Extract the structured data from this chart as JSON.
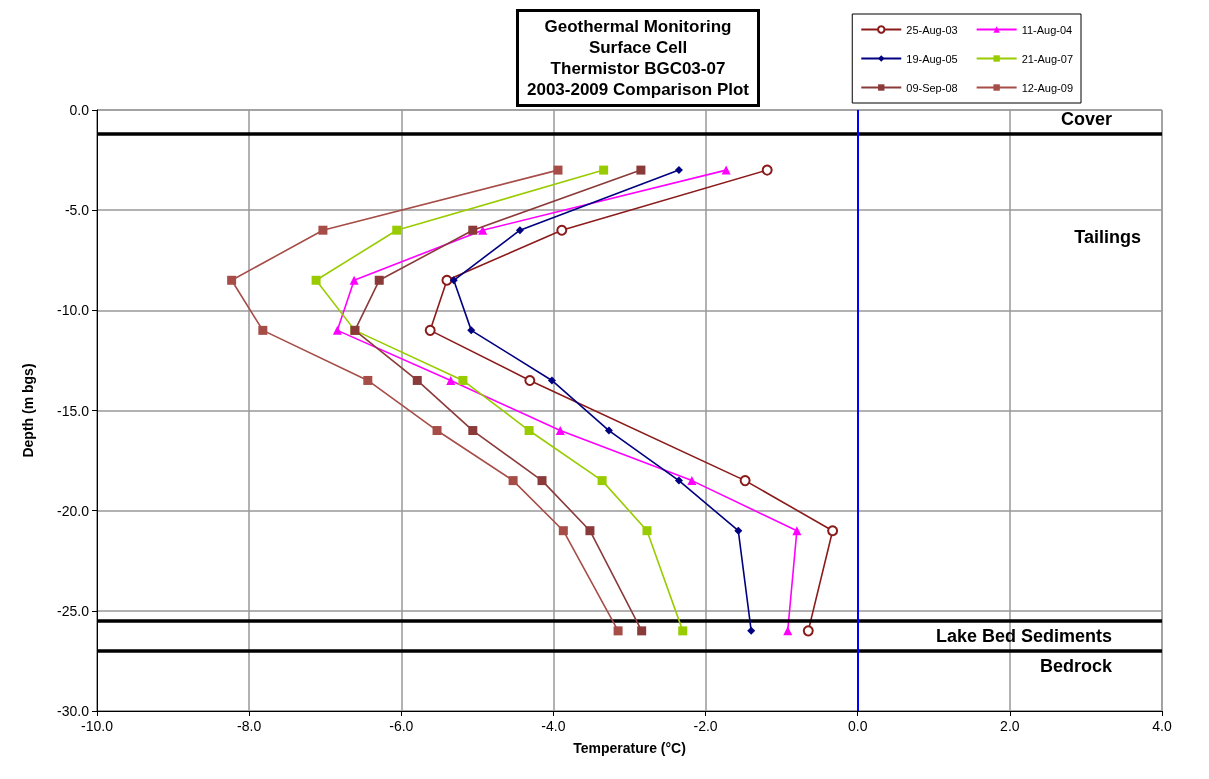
{
  "chart_data": {
    "type": "line",
    "title": "Geothermal Monitoring\nSurface Cell\nThermistor BGC03-07\n2003-2009 Comparison Plot",
    "xlabel": "Temperature (°C)",
    "ylabel": "Depth (m bgs)",
    "series": [
      {
        "name": "25-Aug-03",
        "color": "#8b1a1a",
        "marker": "circle",
        "x": [
          -1.19,
          -3.89,
          -5.4,
          -5.62,
          -4.31,
          -1.48,
          -0.33,
          -0.65
        ],
        "values": [
          -3,
          -6,
          -8.5,
          -11,
          -13.5,
          -18.5,
          -21,
          -26
        ]
      },
      {
        "name": "11-Aug-04",
        "color": "#ff00ff",
        "marker": "triangle",
        "x": [
          -1.73,
          -4.93,
          -6.62,
          -6.84,
          -5.35,
          -3.91,
          -2.18,
          -0.8,
          -0.92
        ],
        "values": [
          -3,
          -6,
          -8.5,
          -11,
          -13.5,
          -16,
          -18.5,
          -21,
          -26
        ]
      },
      {
        "name": "19-Aug-05",
        "color": "#000080",
        "marker": "diamond",
        "x": [
          -2.35,
          -4.44,
          -5.31,
          -5.08,
          -4.02,
          -3.27,
          -2.35,
          -1.57,
          -1.4
        ],
        "values": [
          -3,
          -6,
          -8.5,
          -11,
          -13.5,
          -16,
          -18.5,
          -21,
          -26
        ]
      },
      {
        "name": "21-Aug-07",
        "color": "#99cc00",
        "marker": "square",
        "x": [
          -3.34,
          -6.06,
          -7.12,
          -6.61,
          -5.19,
          -4.32,
          -3.36,
          -2.77,
          -2.3
        ],
        "values": [
          -3,
          -6,
          -8.5,
          -11,
          -13.5,
          -16,
          -18.5,
          -21,
          -26
        ]
      },
      {
        "name": "09-Sep-08",
        "color": "#8b3a3a",
        "marker": "square",
        "x": [
          -2.85,
          -5.06,
          -6.29,
          -6.61,
          -5.79,
          -5.06,
          -4.15,
          -3.52,
          -2.84
        ],
        "values": [
          -3,
          -6,
          -8.5,
          -11,
          -13.5,
          -16,
          -18.5,
          -21,
          -26
        ]
      },
      {
        "name": "12-Aug-09",
        "color": "#a64d48",
        "marker": "square",
        "x": [
          -3.94,
          -7.03,
          -8.23,
          -7.82,
          -6.44,
          -5.53,
          -4.53,
          -3.87,
          -3.15
        ],
        "values": [
          -3,
          -6,
          -8.5,
          -11,
          -13.5,
          -16,
          -18.5,
          -21,
          -26
        ]
      }
    ],
    "xlim": [
      -10,
      4
    ],
    "xticks": [
      {
        "value": -10,
        "label": "-10.0"
      },
      {
        "value": -8,
        "label": "-8.0"
      },
      {
        "value": -6,
        "label": "-6.0"
      },
      {
        "value": -4,
        "label": "-4.0"
      },
      {
        "value": -2,
        "label": "-2.0"
      },
      {
        "value": 0,
        "label": "0.0"
      },
      {
        "value": 2,
        "label": "2.0"
      },
      {
        "value": 4,
        "label": "4.0"
      }
    ],
    "ylim": [
      -30,
      0
    ],
    "yticks": [
      {
        "value": -30,
        "label": "-30.0"
      },
      {
        "value": -25,
        "label": "-25.0"
      },
      {
        "value": -20,
        "label": "-20.0"
      },
      {
        "value": -15,
        "label": "-15.0"
      },
      {
        "value": -10,
        "label": "-10.0"
      },
      {
        "value": -5,
        "label": "-5.0"
      },
      {
        "value": 0,
        "label": "0.0"
      }
    ],
    "ref_lines": [
      {
        "axis": "y",
        "value": -1.2,
        "label": "Cover",
        "color": "#000000"
      },
      {
        "axis": "y",
        "value": -25.5,
        "label": "Lake Bed Sediments",
        "color": "#000000"
      },
      {
        "axis": "y",
        "value": -27,
        "label": "Bedrock",
        "color": "#000000"
      },
      {
        "axis": "x",
        "value": 0,
        "color": "#0000ff"
      }
    ],
    "annotations": [
      "Tailings"
    ],
    "grid": true,
    "legend": "top right"
  }
}
